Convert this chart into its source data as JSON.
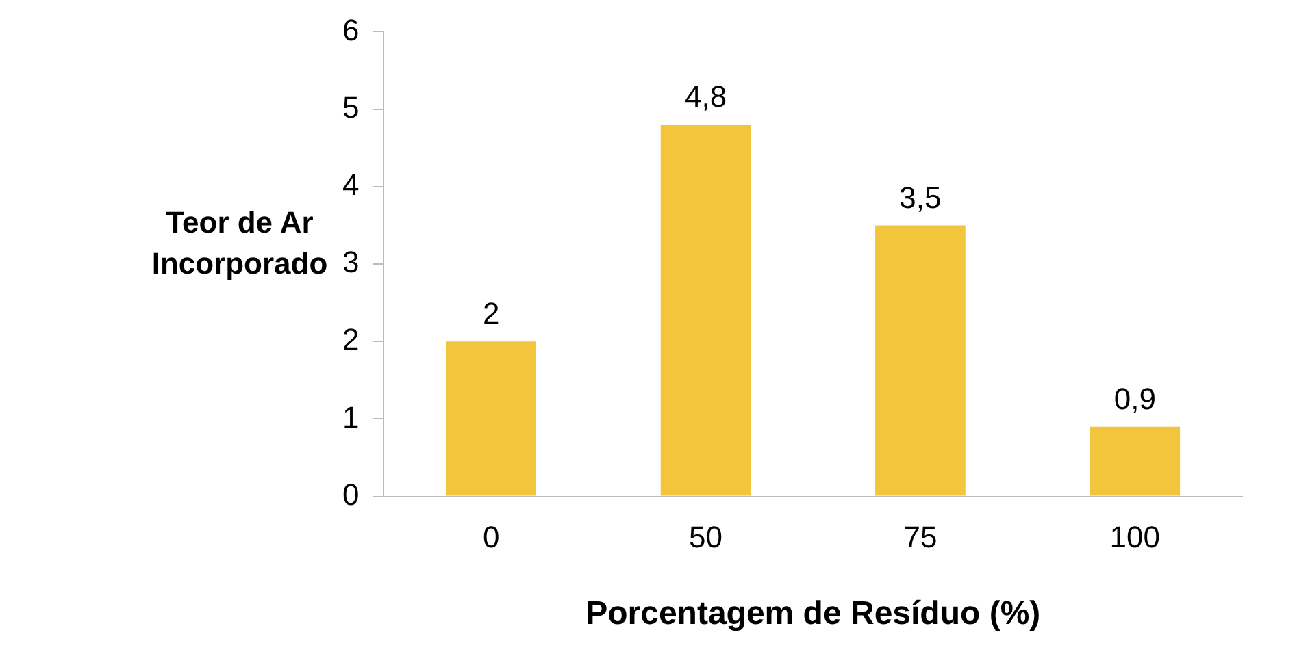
{
  "chart_data": {
    "type": "bar",
    "xlabel": "Porcentagem de Resíduo (%)",
    "ylabel": "Teor de Ar Incorporado",
    "categories": [
      "0",
      "50",
      "75",
      "100"
    ],
    "values": [
      2,
      4.8,
      3.5,
      0.9
    ],
    "value_labels": [
      "2",
      "4,8",
      "3,5",
      "0,9"
    ],
    "color": "#f2c53d",
    "ylim": [
      0,
      6
    ],
    "yticks": [
      0,
      1,
      2,
      3,
      4,
      5,
      6
    ],
    "grid": false,
    "legend": false
  }
}
